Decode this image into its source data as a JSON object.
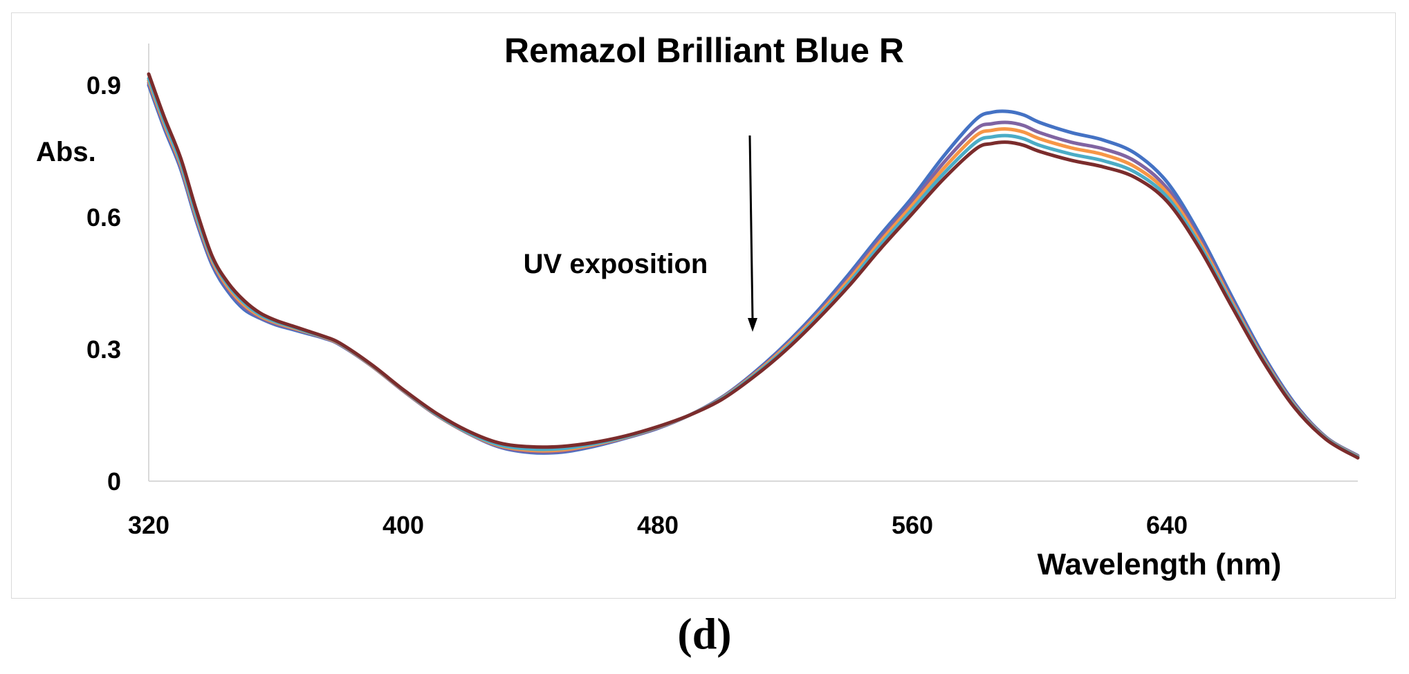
{
  "chart_data": {
    "type": "line",
    "title": "Remazol Brilliant Blue R",
    "xlabel": "Wavelength (nm)",
    "ylabel": "Abs.",
    "annotation": "UV exposition",
    "panel_label": "(d)",
    "xlim": [
      320,
      700
    ],
    "ylim": [
      0,
      0.9
    ],
    "x_ticks": [
      320,
      400,
      480,
      560,
      640
    ],
    "x_tick_labels": [
      "320",
      "400",
      "480",
      "560",
      "640"
    ],
    "y_ticks": [
      0,
      0.3,
      0.6,
      0.9
    ],
    "y_tick_labels": [
      "0",
      "0.3",
      "0.6",
      "0.9"
    ],
    "grid": false,
    "legend": "none",
    "arrow_direction": "down",
    "x": [
      320,
      325,
      330,
      335,
      340,
      345,
      350,
      355,
      360,
      365,
      370,
      375,
      380,
      390,
      400,
      410,
      420,
      430,
      440,
      450,
      460,
      470,
      480,
      490,
      500,
      510,
      520,
      530,
      540,
      550,
      560,
      570,
      580,
      585,
      590,
      595,
      600,
      610,
      620,
      630,
      640,
      650,
      660,
      670,
      680,
      690,
      700
    ],
    "series": [
      {
        "color": "#4472c4",
        "values": [
          0.9,
          0.8,
          0.71,
          0.59,
          0.49,
          0.43,
          0.39,
          0.37,
          0.355,
          0.345,
          0.335,
          0.325,
          0.31,
          0.262,
          0.205,
          0.152,
          0.11,
          0.078,
          0.065,
          0.066,
          0.079,
          0.098,
          0.12,
          0.15,
          0.19,
          0.245,
          0.31,
          0.385,
          0.47,
          0.56,
          0.645,
          0.74,
          0.822,
          0.838,
          0.84,
          0.832,
          0.815,
          0.792,
          0.775,
          0.745,
          0.68,
          0.565,
          0.425,
          0.29,
          0.178,
          0.1,
          0.058
        ]
      },
      {
        "color": "#8064a2",
        "values": [
          0.905,
          0.805,
          0.715,
          0.595,
          0.495,
          0.435,
          0.395,
          0.372,
          0.357,
          0.347,
          0.337,
          0.326,
          0.311,
          0.262,
          0.205,
          0.152,
          0.11,
          0.079,
          0.067,
          0.068,
          0.081,
          0.099,
          0.121,
          0.15,
          0.189,
          0.243,
          0.307,
          0.38,
          0.463,
          0.552,
          0.635,
          0.725,
          0.8,
          0.812,
          0.815,
          0.808,
          0.792,
          0.77,
          0.755,
          0.727,
          0.666,
          0.555,
          0.418,
          0.285,
          0.175,
          0.099,
          0.057
        ]
      },
      {
        "color": "#f79646",
        "values": [
          0.91,
          0.81,
          0.72,
          0.6,
          0.5,
          0.44,
          0.4,
          0.375,
          0.36,
          0.349,
          0.338,
          0.327,
          0.312,
          0.263,
          0.206,
          0.153,
          0.111,
          0.081,
          0.07,
          0.071,
          0.083,
          0.1,
          0.122,
          0.15,
          0.188,
          0.241,
          0.304,
          0.376,
          0.457,
          0.545,
          0.627,
          0.712,
          0.785,
          0.797,
          0.8,
          0.793,
          0.778,
          0.757,
          0.742,
          0.714,
          0.656,
          0.548,
          0.413,
          0.282,
          0.173,
          0.098,
          0.056
        ]
      },
      {
        "color": "#4bacc6",
        "values": [
          0.915,
          0.815,
          0.725,
          0.605,
          0.505,
          0.445,
          0.405,
          0.378,
          0.362,
          0.351,
          0.339,
          0.328,
          0.313,
          0.264,
          0.207,
          0.154,
          0.112,
          0.083,
          0.073,
          0.074,
          0.085,
          0.101,
          0.123,
          0.15,
          0.187,
          0.239,
          0.3,
          0.371,
          0.45,
          0.537,
          0.618,
          0.7,
          0.77,
          0.782,
          0.785,
          0.778,
          0.763,
          0.743,
          0.728,
          0.702,
          0.646,
          0.54,
          0.408,
          0.279,
          0.171,
          0.097,
          0.055
        ]
      },
      {
        "color": "#7b2c2c",
        "values": [
          0.925,
          0.825,
          0.735,
          0.615,
          0.51,
          0.45,
          0.41,
          0.382,
          0.365,
          0.353,
          0.341,
          0.329,
          0.314,
          0.265,
          0.208,
          0.156,
          0.115,
          0.087,
          0.078,
          0.079,
          0.088,
          0.103,
          0.124,
          0.15,
          0.185,
          0.236,
          0.296,
          0.366,
          0.443,
          0.528,
          0.608,
          0.688,
          0.755,
          0.767,
          0.77,
          0.763,
          0.749,
          0.729,
          0.714,
          0.69,
          0.636,
          0.532,
          0.402,
          0.275,
          0.168,
          0.095,
          0.053
        ]
      }
    ]
  }
}
